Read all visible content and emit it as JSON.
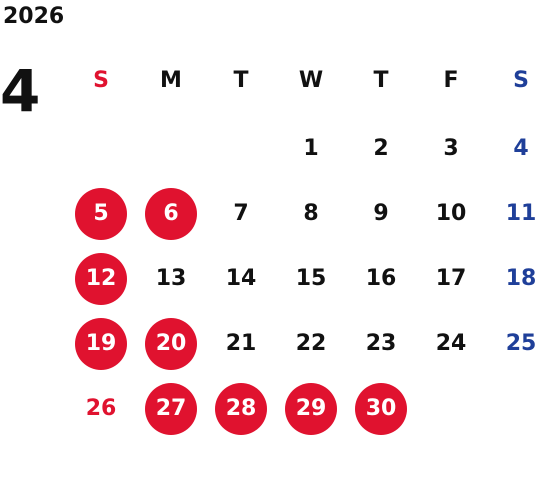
{
  "calendar": {
    "year": "2026",
    "month": "4",
    "weekdays": [
      "S",
      "M",
      "T",
      "W",
      "T",
      "F",
      "S"
    ],
    "colors": {
      "sunday": "#e0122f",
      "saturday": "#1f3f99",
      "holiday_bg": "#e0122f",
      "weekday": "#111111"
    },
    "weeks": [
      [
        "",
        "",
        "",
        "1",
        "2",
        "3",
        "4"
      ],
      [
        "5",
        "6",
        "7",
        "8",
        "9",
        "10",
        "11"
      ],
      [
        "12",
        "13",
        "14",
        "15",
        "16",
        "17",
        "18"
      ],
      [
        "19",
        "20",
        "21",
        "22",
        "23",
        "24",
        "25"
      ],
      [
        "26",
        "27",
        "28",
        "29",
        "30",
        "",
        ""
      ]
    ],
    "highlighted_days": [
      "5",
      "6",
      "12",
      "19",
      "20",
      "27",
      "28",
      "29",
      "30"
    ]
  }
}
